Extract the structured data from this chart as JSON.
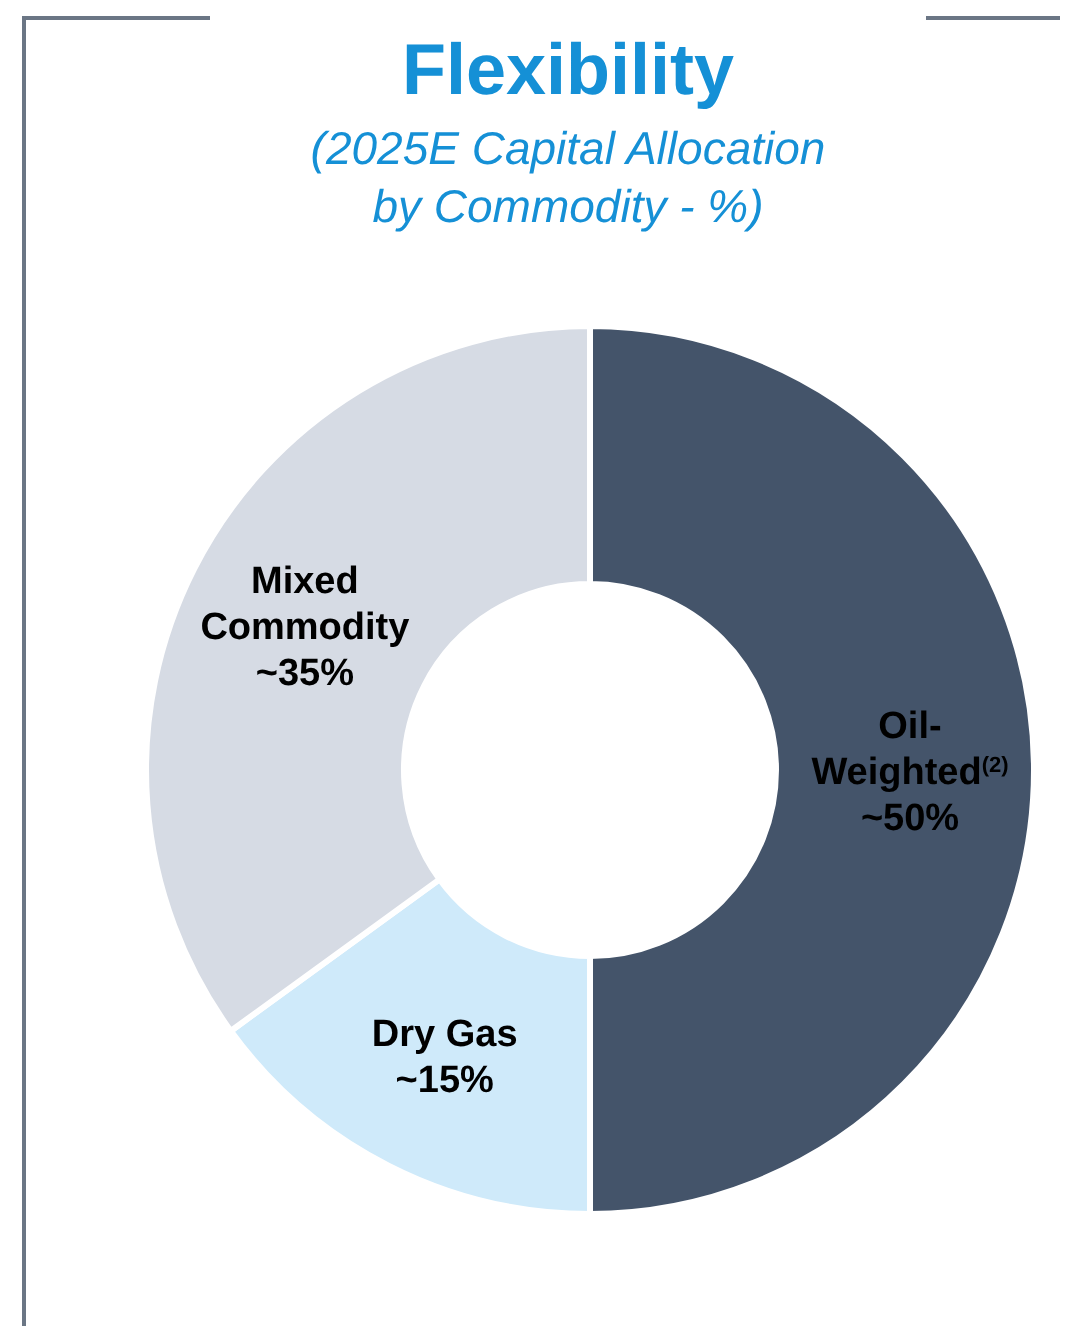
{
  "chart_data": {
    "type": "donut",
    "title": "Flexibility",
    "subtitle": "(2025E Capital Allocation by Commodity - %)",
    "categories": [
      "Oil-Weighted$^{(2)}$",
      "Dry Gas",
      "Mixed Commodity"
    ],
    "values": [
      50,
      15,
      35
    ],
    "colors": [
      "#44546a",
      "#cfeafa",
      "#d6dbe4"
    ],
    "value_labels": [
      "~50%",
      "~15%",
      "~35%"
    ],
    "legend": false
  }
}
